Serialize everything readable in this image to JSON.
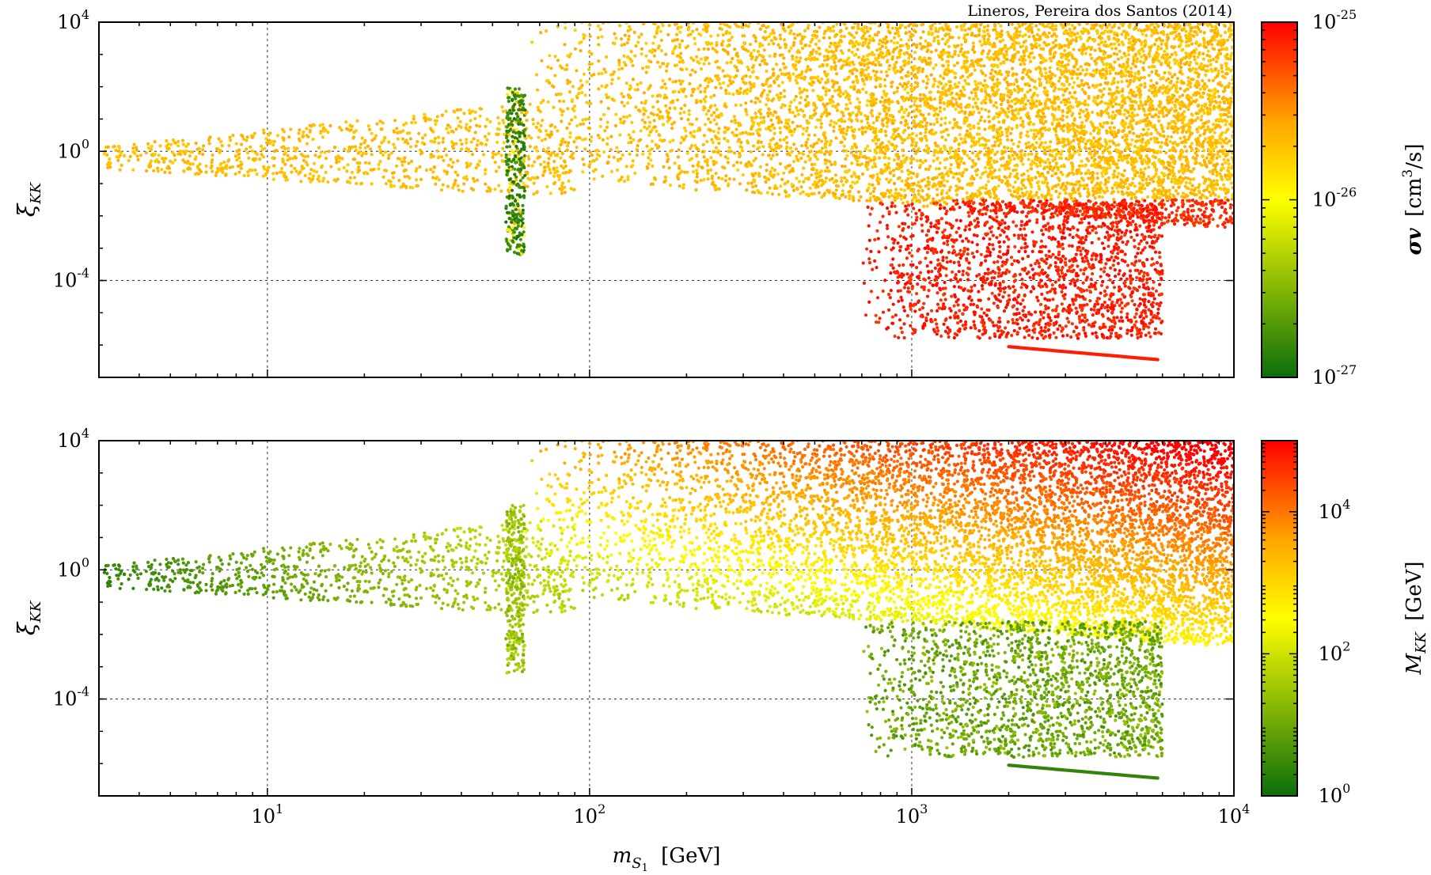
{
  "credit": "Lineros, Pereira dos Santos (2014)",
  "colors": {
    "low": "#0b6e0b",
    "mid": "#ffff00",
    "high": "#ff0000",
    "orange": "#ffa500"
  },
  "chart_data": [
    {
      "type": "scatter",
      "panel": "top",
      "xlabel": "",
      "ylabel_base": "ξ",
      "ylabel_sub": "KK",
      "xscale": "log",
      "yscale": "log",
      "xlim": [
        3,
        10000
      ],
      "ylim": [
        1e-07,
        10000
      ],
      "x_ticks": [
        "10^1",
        "10^2",
        "10^3",
        "10^4"
      ],
      "y_ticks": [
        "10^-4",
        "10^0",
        "10^4"
      ],
      "grid": true,
      "colorbar": {
        "label": "σv [cm³/s]",
        "label_main": "σv",
        "label_unit": "[cm",
        "label_unit_sup": "3",
        "label_unit_end": "/s]",
        "scale": "log",
        "range": [
          1e-27,
          1e-25
        ],
        "ticks": [
          "10^-27",
          "10^-26",
          "10^-25"
        ],
        "stops": [
          "#0b6e0b",
          "#ffff00",
          "#ffa500",
          "#ff0000"
        ]
      },
      "regions": [
        {
          "name": "light-dm-band",
          "x_range": [
            3,
            90
          ],
          "y_upper_at_xmin": 3,
          "y_upper_at_xmax": 30,
          "y_lower": 0.05,
          "color_value": 3e-26
        },
        {
          "name": "higgs-resonance",
          "x_range": [
            55,
            63
          ],
          "y_range": [
            0.0005,
            100
          ],
          "color_value": 1e-27
        },
        {
          "name": "heavy-dm-main",
          "x_range": [
            60,
            10000
          ],
          "y_range": [
            0.01,
            10000
          ],
          "color_value": 4e-26
        },
        {
          "name": "heavy-dm-low-tail",
          "x_range": [
            700,
            6000
          ],
          "y_range": [
            1e-06,
            0.01
          ],
          "color_value": 1e-25
        }
      ]
    },
    {
      "type": "scatter",
      "panel": "bottom",
      "xlabel": "m",
      "xlabel_sub": "S",
      "xlabel_subsub": "1",
      "xlabel_unit": "[GeV]",
      "ylabel_base": "ξ",
      "ylabel_sub": "KK",
      "xscale": "log",
      "yscale": "log",
      "xlim": [
        3,
        10000
      ],
      "ylim": [
        1e-07,
        10000
      ],
      "x_ticks": [
        "10^1",
        "10^2",
        "10^3",
        "10^4"
      ],
      "y_ticks": [
        "10^-4",
        "10^0",
        "10^4"
      ],
      "grid": true,
      "colorbar": {
        "label": "M_KK [GeV]",
        "label_main": "M",
        "label_sub": "KK",
        "label_unit": "[GeV]",
        "scale": "log",
        "range": [
          1,
          100000
        ],
        "ticks": [
          "10^0",
          "10^2",
          "10^4"
        ],
        "stops": [
          "#0b6e0b",
          "#ffff00",
          "#ffa500",
          "#ff0000"
        ]
      },
      "regions": [
        {
          "name": "light-dm-band",
          "x_range": [
            3,
            90
          ],
          "y_range": [
            0.05,
            30
          ],
          "color_value": 15
        },
        {
          "name": "higgs-resonance",
          "x_range": [
            55,
            63
          ],
          "y_range": [
            0.0005,
            100
          ],
          "color_value": 40
        },
        {
          "name": "heavy-dm-main",
          "x_range": [
            60,
            10000
          ],
          "y_range": [
            0.01,
            10000
          ],
          "color_value": 3000
        },
        {
          "name": "heavy-dm-low-tail",
          "x_range": [
            700,
            6000
          ],
          "y_range": [
            1e-06,
            0.01
          ],
          "color_value": 20
        }
      ]
    }
  ]
}
